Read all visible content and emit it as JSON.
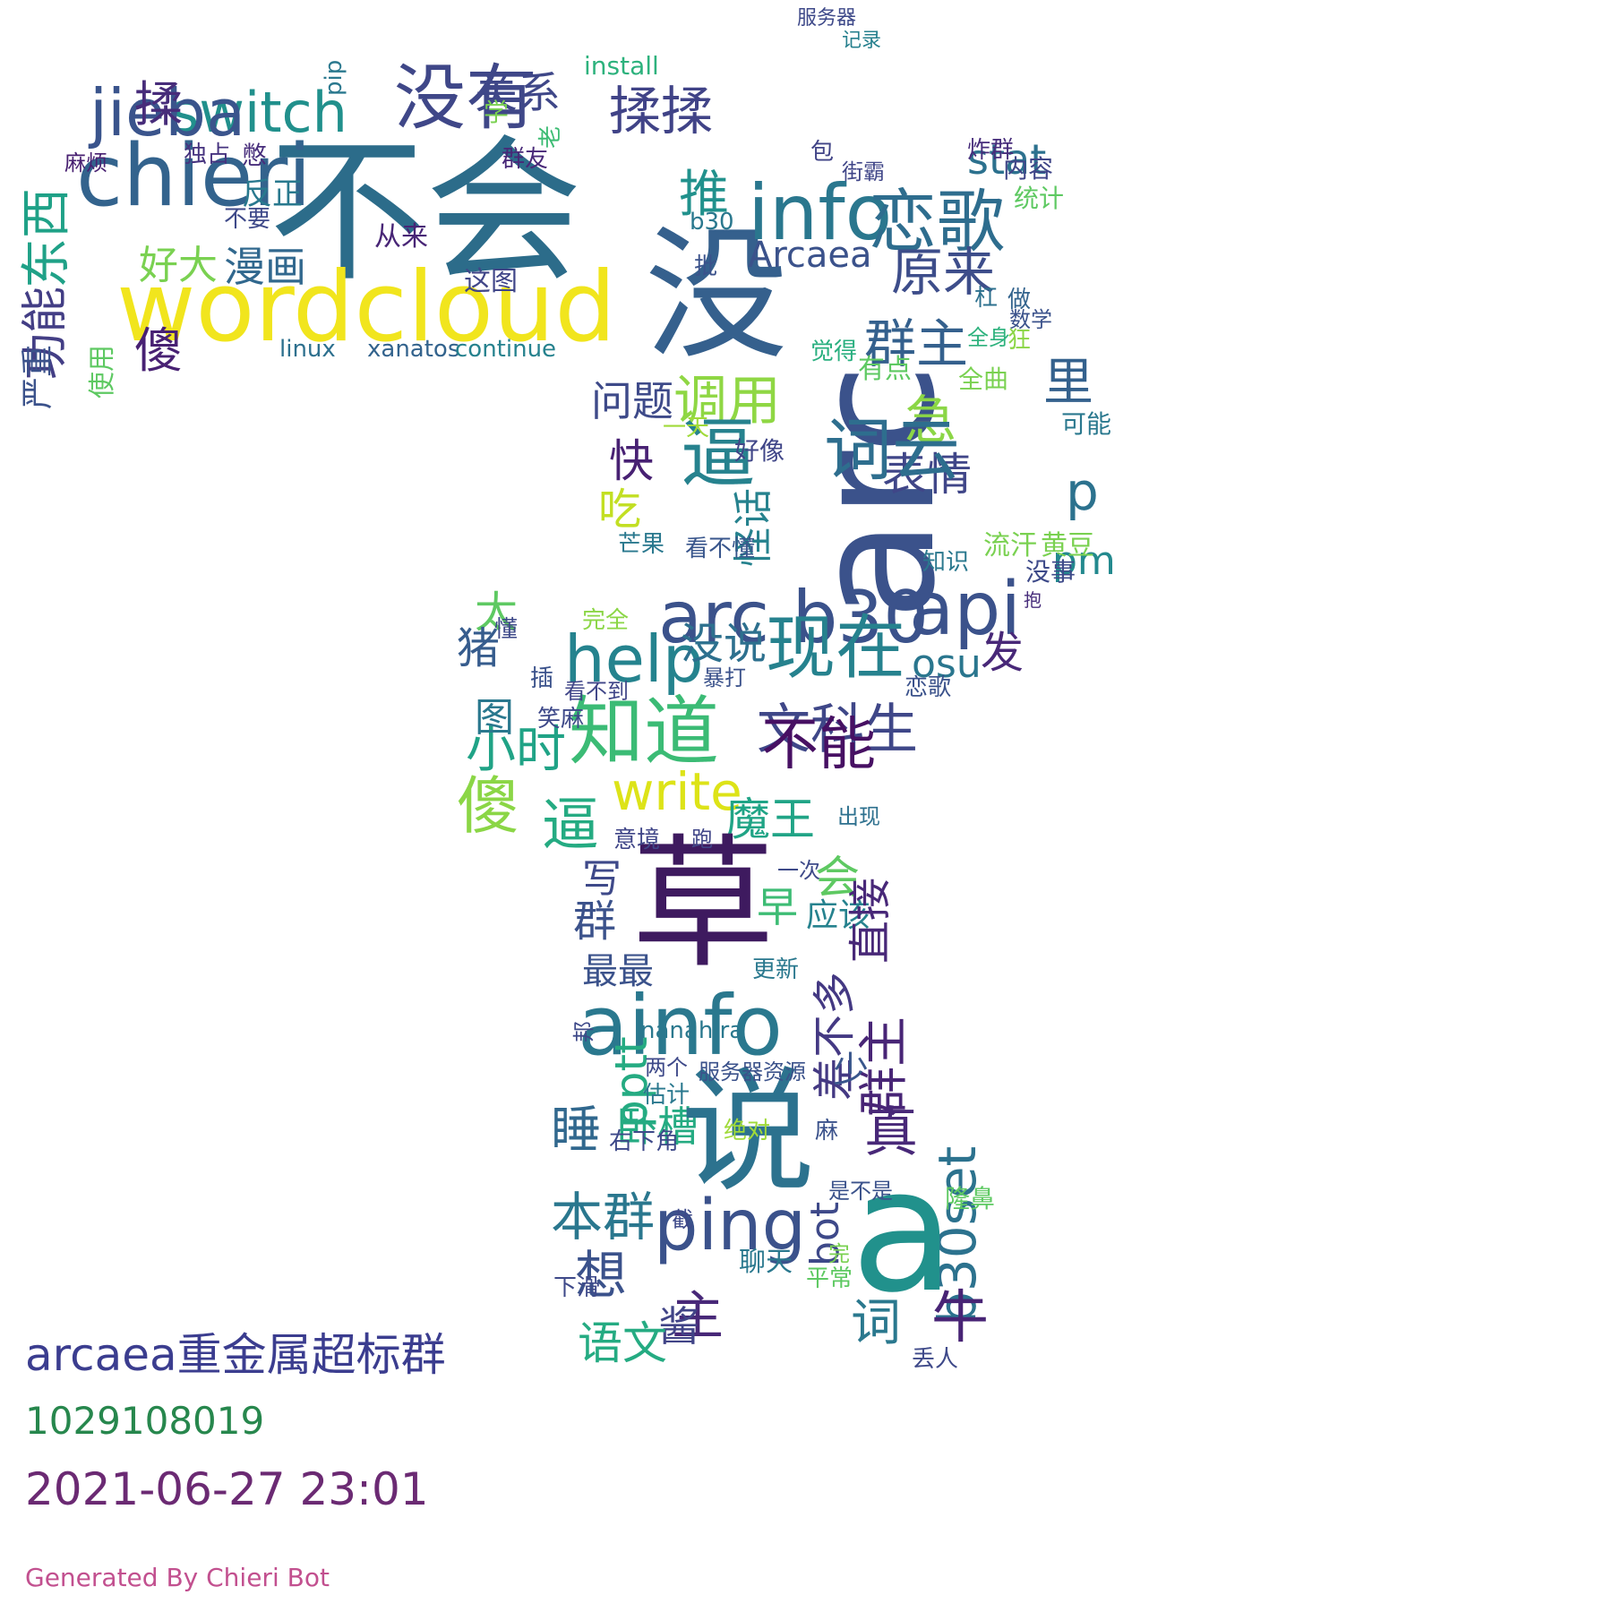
{
  "words": [
    {
      "text": "不会",
      "size": 175,
      "color": "#2c6c8a"
    },
    {
      "text": "wordcloud",
      "size": 108,
      "color": "#f1e51d"
    },
    {
      "text": "没有",
      "size": 80,
      "color": "#3f4788"
    },
    {
      "text": "chieri",
      "size": 95,
      "color": "#33638d"
    },
    {
      "text": "switch",
      "size": 62,
      "color": "#21908c"
    },
    {
      "text": "jieba",
      "size": 72,
      "color": "#3a548c"
    },
    {
      "text": "揉",
      "size": 54,
      "color": "#472c7a"
    },
    {
      "text": "傻",
      "size": 54,
      "color": "#482173"
    },
    {
      "text": "关系",
      "size": 48,
      "color": "#3f4788"
    },
    {
      "text": "东西",
      "size": 56,
      "color": "#1fa187"
    },
    {
      "text": "功能",
      "size": 52,
      "color": "#433e85"
    },
    {
      "text": "漫画",
      "size": 46,
      "color": "#31688e"
    },
    {
      "text": "好大",
      "size": 44,
      "color": "#7ad151"
    },
    {
      "text": "反正",
      "size": 34,
      "color": "#29798e"
    },
    {
      "text": "从来",
      "size": 30,
      "color": "#482576"
    },
    {
      "text": "这图",
      "size": 30,
      "color": "#404688"
    },
    {
      "text": "xanatos",
      "size": 26,
      "color": "#33638d"
    },
    {
      "text": "continue",
      "size": 26,
      "color": "#26828e"
    },
    {
      "text": "linux",
      "size": 26,
      "color": "#2d708e"
    },
    {
      "text": "严重",
      "size": 36,
      "color": "#3b528b"
    },
    {
      "text": "使用",
      "size": 30,
      "color": "#5ec962"
    },
    {
      "text": "学",
      "size": 28,
      "color": "#7ad151"
    },
    {
      "text": "群友",
      "size": 26,
      "color": "#482878"
    },
    {
      "text": "不要",
      "size": 26,
      "color": "#3e4989"
    },
    {
      "text": "独占",
      "size": 26,
      "color": "#46337f"
    },
    {
      "text": "憋",
      "size": 28,
      "color": "#472d7b"
    },
    {
      "text": "pip",
      "size": 26,
      "color": "#2a788e"
    },
    {
      "text": "麻烦",
      "size": 24,
      "color": "#482071"
    },
    {
      "text": "老",
      "size": 26,
      "color": "#3dbc74"
    },
    {
      "text": "没",
      "size": 160,
      "color": "#35608d"
    },
    {
      "text": "arc",
      "size": 185,
      "color": "#3b528b"
    },
    {
      "text": "info",
      "size": 86,
      "color": "#2a778e"
    },
    {
      "text": "恋歌",
      "size": 76,
      "color": "#2e6d8e"
    },
    {
      "text": "揉揉",
      "size": 58,
      "color": "#404387"
    },
    {
      "text": "推",
      "size": 56,
      "color": "#21918c"
    },
    {
      "text": "Arcaea",
      "size": 40,
      "color": "#3b528b"
    },
    {
      "text": "原来",
      "size": 58,
      "color": "#3d4d8a"
    },
    {
      "text": "stat",
      "size": 46,
      "color": "#2c718e"
    },
    {
      "text": "群主",
      "size": 58,
      "color": "#34608d"
    },
    {
      "text": "急",
      "size": 58,
      "color": "#8bd646"
    },
    {
      "text": "里",
      "size": 56,
      "color": "#34618d"
    },
    {
      "text": "表情",
      "size": 50,
      "color": "#404688"
    },
    {
      "text": "p",
      "size": 58,
      "color": "#2c728e"
    },
    {
      "text": "pm",
      "size": 44,
      "color": "#23898e"
    },
    {
      "text": "问题",
      "size": 46,
      "color": "#3e4a89"
    },
    {
      "text": "调用",
      "size": 60,
      "color": "#8fd744"
    },
    {
      "text": "快",
      "size": 50,
      "color": "#482173"
    },
    {
      "text": "逼",
      "size": 84,
      "color": "#26828e"
    },
    {
      "text": "词云",
      "size": 76,
      "color": "#2e6e8e"
    },
    {
      "text": "吃",
      "size": 48,
      "color": "#c2df23"
    },
    {
      "text": "怪话",
      "size": 44,
      "color": "#26828e"
    },
    {
      "text": "api",
      "size": 82,
      "color": "#3b528b"
    },
    {
      "text": "arc b30",
      "size": 80,
      "color": "#3b528b"
    },
    {
      "text": "help",
      "size": 72,
      "color": "#25838e"
    },
    {
      "text": "现在",
      "size": 78,
      "color": "#26828e"
    },
    {
      "text": "没说",
      "size": 48,
      "color": "#2d708e"
    },
    {
      "text": "osu",
      "size": 44,
      "color": "#2a768e"
    },
    {
      "text": "发",
      "size": 48,
      "color": "#482878"
    },
    {
      "text": "太",
      "size": 48,
      "color": "#5ec962"
    },
    {
      "text": "猪",
      "size": 48,
      "color": "#365c8d"
    },
    {
      "text": "文科生",
      "size": 60,
      "color": "#3f4788"
    },
    {
      "text": "知道",
      "size": 84,
      "color": "#3bbb75"
    },
    {
      "text": "小时",
      "size": 56,
      "color": "#20a386"
    },
    {
      "text": "不能",
      "size": 64,
      "color": "#471063"
    },
    {
      "text": "图",
      "size": 44,
      "color": "#2a788e"
    },
    {
      "text": "write",
      "size": 58,
      "color": "#dde318"
    },
    {
      "text": "傻",
      "size": 70,
      "color": "#8bd646"
    },
    {
      "text": "逼",
      "size": 64,
      "color": "#25ab82"
    },
    {
      "text": "魔王",
      "size": 50,
      "color": "#20a486"
    },
    {
      "text": "会",
      "size": 50,
      "color": "#5ec962"
    },
    {
      "text": "写",
      "size": 44,
      "color": "#3e4989"
    },
    {
      "text": "草",
      "size": 160,
      "color": "#3e1a5f"
    },
    {
      "text": "早",
      "size": 46,
      "color": "#3dbc74"
    },
    {
      "text": "应该",
      "size": 36,
      "color": "#26828e"
    },
    {
      "text": "直接",
      "size": 48,
      "color": "#482878"
    },
    {
      "text": "差不多",
      "size": 48,
      "color": "#443983"
    },
    {
      "text": "群",
      "size": 48,
      "color": "#3b528b"
    },
    {
      "text": "最最",
      "size": 40,
      "color": "#3b528b"
    },
    {
      "text": "ainfo",
      "size": 92,
      "color": "#2a788e"
    },
    {
      "text": "群主",
      "size": 56,
      "color": "#482576"
    },
    {
      "text": "pptt",
      "size": 50,
      "color": "#25ab82"
    },
    {
      "text": "少",
      "size": 40,
      "color": "#39568c"
    },
    {
      "text": "睡",
      "size": 56,
      "color": "#31688e"
    },
    {
      "text": "卧槽",
      "size": 46,
      "color": "#25ab82"
    },
    {
      "text": "说",
      "size": 150,
      "color": "#2c728e"
    },
    {
      "text": "真",
      "size": 60,
      "color": "#482878"
    },
    {
      "text": "b30set",
      "size": 58,
      "color": "#2c728e"
    },
    {
      "text": "本群",
      "size": 58,
      "color": "#2a778e"
    },
    {
      "text": "ping",
      "size": 78,
      "color": "#3b528b"
    },
    {
      "text": "bot",
      "size": 44,
      "color": "#3e4989"
    },
    {
      "text": "想",
      "size": 58,
      "color": "#3b528b"
    },
    {
      "text": "a",
      "size": 190,
      "color": "#21918c"
    },
    {
      "text": "主",
      "size": 58,
      "color": "#482878"
    },
    {
      "text": "酱",
      "size": 46,
      "color": "#414487"
    },
    {
      "text": "语文",
      "size": 50,
      "color": "#25ab82"
    },
    {
      "text": "词",
      "size": 56,
      "color": "#2a788e"
    },
    {
      "text": "牛",
      "size": 64,
      "color": "#482475"
    },
    {
      "text": "arcaea",
      "size": 0,
      "color": "#3b528b"
    },
    {
      "text": "服务器",
      "size": 22,
      "color": "#3e4989"
    },
    {
      "text": "install",
      "size": 28,
      "color": "#2db27d"
    },
    {
      "text": "记录",
      "size": 22,
      "color": "#27808e"
    },
    {
      "text": "炸群",
      "size": 26,
      "color": "#472d7b"
    },
    {
      "text": "内容",
      "size": 28,
      "color": "#404688"
    },
    {
      "text": "统计",
      "size": 28,
      "color": "#5ec962"
    },
    {
      "text": "包",
      "size": 26,
      "color": "#414487"
    },
    {
      "text": "街霸",
      "size": 24,
      "color": "#404688"
    },
    {
      "text": "b30",
      "size": 26,
      "color": "#2a788e"
    },
    {
      "text": "批",
      "size": 26,
      "color": "#3b528b"
    },
    {
      "text": "杠",
      "size": 26,
      "color": "#2d708e"
    },
    {
      "text": "做",
      "size": 26,
      "color": "#33638d"
    },
    {
      "text": "数学",
      "size": 24,
      "color": "#3b528b"
    },
    {
      "text": "全身",
      "size": 24,
      "color": "#2db27d"
    },
    {
      "text": "狂",
      "size": 26,
      "color": "#8bd646"
    },
    {
      "text": "觉得",
      "size": 26,
      "color": "#29af7f"
    },
    {
      "text": "有点",
      "size": 30,
      "color": "#5ec962"
    },
    {
      "text": "全曲",
      "size": 28,
      "color": "#7ad151"
    },
    {
      "text": "可能",
      "size": 28,
      "color": "#2a788e"
    },
    {
      "text": "好像",
      "size": 28,
      "color": "#404688"
    },
    {
      "text": "一天",
      "size": 26,
      "color": "#a0da39"
    },
    {
      "text": "芒果",
      "size": 26,
      "color": "#2a788e"
    },
    {
      "text": "看不懂",
      "size": 26,
      "color": "#39568c"
    },
    {
      "text": "知识",
      "size": 26,
      "color": "#2a788e"
    },
    {
      "text": "流汗",
      "size": 30,
      "color": "#7ad151"
    },
    {
      "text": "黄豆",
      "size": 30,
      "color": "#7ad151"
    },
    {
      "text": "没事",
      "size": 28,
      "color": "#3e4a89"
    },
    {
      "text": "抱",
      "size": 20,
      "color": "#472d7b"
    },
    {
      "text": "暴打",
      "size": 24,
      "color": "#3b528b"
    },
    {
      "text": "恋歌",
      "size": 26,
      "color": "#3b528b"
    },
    {
      "text": "插",
      "size": 26,
      "color": "#3b528b"
    },
    {
      "text": "看不到",
      "size": 24,
      "color": "#404688"
    },
    {
      "text": "笑麻",
      "size": 26,
      "color": "#3e4989"
    },
    {
      "text": "完全",
      "size": 26,
      "color": "#8bd646"
    },
    {
      "text": "懂",
      "size": 26,
      "color": "#3e4989"
    },
    {
      "text": "意境",
      "size": 26,
      "color": "#404688"
    },
    {
      "text": "跑",
      "size": 24,
      "color": "#404688"
    },
    {
      "text": "出现",
      "size": 24,
      "color": "#2d708e"
    },
    {
      "text": "一次",
      "size": 24,
      "color": "#3e4a89"
    },
    {
      "text": "更新",
      "size": 26,
      "color": "#2a788e"
    },
    {
      "text": "两个",
      "size": 24,
      "color": "#3e4989"
    },
    {
      "text": "服务器资源",
      "size": 24,
      "color": "#3b528b"
    },
    {
      "text": "估计",
      "size": 26,
      "color": "#2a788e"
    },
    {
      "text": "右下角",
      "size": 26,
      "color": "#3e4989"
    },
    {
      "text": "绝对",
      "size": 26,
      "color": "#a0da39"
    },
    {
      "text": "麻",
      "size": 26,
      "color": "#3b528b"
    },
    {
      "text": "是不是",
      "size": 24,
      "color": "#3b528b"
    },
    {
      "text": "隆鼻",
      "size": 28,
      "color": "#5ec962"
    },
    {
      "text": "聊天",
      "size": 30,
      "color": "#2a788e"
    },
    {
      "text": "平常",
      "size": 26,
      "color": "#5ec962"
    },
    {
      "text": "丢人",
      "size": 26,
      "color": "#3e4989"
    },
    {
      "text": "下滑",
      "size": 26,
      "color": "#3e4989"
    },
    {
      "text": "截",
      "size": 24,
      "color": "#3e4989"
    },
    {
      "text": "邦",
      "size": 24,
      "color": "#3e4989"
    },
    {
      "text": "nanahira",
      "size": 26,
      "color": "#2a788e"
    },
    {
      "text": "完",
      "size": 24,
      "color": "#7ad151"
    },
    {
      "text": "移动",
      "size": 22,
      "color": "#3b528b"
    },
    {
      "text": "Generated",
      "size": 0,
      "color": "#000000"
    }
  ],
  "group_name": "arcaea重金属超标群",
  "group_id": "1029108019",
  "datetime": "2021-06-27 23:01",
  "footer": "Generated By Chieri Bot"
}
